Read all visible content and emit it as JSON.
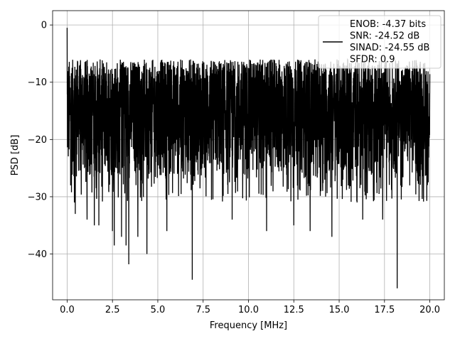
{
  "chart_data": {
    "type": "line",
    "title": "",
    "xlabel": "Frequency [MHz]",
    "ylabel": "PSD [dB]",
    "xlim": [
      -0.8,
      20.8
    ],
    "ylim": [
      -48,
      2.5
    ],
    "xticks": [
      0.0,
      2.5,
      5.0,
      7.5,
      10.0,
      12.5,
      15.0,
      17.5,
      20.0
    ],
    "xtick_labels": [
      "0.0",
      "2.5",
      "5.0",
      "7.5",
      "10.0",
      "12.5",
      "15.0",
      "17.5",
      "20.0"
    ],
    "yticks": [
      0,
      -10,
      -20,
      -30,
      -40
    ],
    "ytick_labels": [
      "0",
      "−10",
      "−20",
      "−30",
      "−40"
    ],
    "grid": true,
    "legend_position": "top-right",
    "series": [
      {
        "name": "ENOB: -4.37 bits\nSNR: -24.52 dB\nSINAD: -24.55 dB\nSFDR: 0.9",
        "color": "#000000",
        "x_range": [
          0,
          20
        ],
        "y_band": [
          -27,
          -6
        ],
        "notable_points": [
          {
            "x": 0.0,
            "y": -0.5
          },
          {
            "x": 0.05,
            "y": -17
          },
          {
            "x": 0.4,
            "y": -31
          },
          {
            "x": 0.45,
            "y": -33
          },
          {
            "x": 1.1,
            "y": -34
          },
          {
            "x": 1.5,
            "y": -35
          },
          {
            "x": 1.75,
            "y": -35
          },
          {
            "x": 2.5,
            "y": -36
          },
          {
            "x": 2.6,
            "y": -38.5
          },
          {
            "x": 3.0,
            "y": -37
          },
          {
            "x": 3.25,
            "y": -38.5
          },
          {
            "x": 3.4,
            "y": -41.8
          },
          {
            "x": 3.9,
            "y": -37
          },
          {
            "x": 4.4,
            "y": -40
          },
          {
            "x": 5.5,
            "y": -36
          },
          {
            "x": 6.9,
            "y": -44.5
          },
          {
            "x": 9.1,
            "y": -34
          },
          {
            "x": 11.0,
            "y": -36
          },
          {
            "x": 12.5,
            "y": -35
          },
          {
            "x": 13.4,
            "y": -36
          },
          {
            "x": 14.6,
            "y": -37
          },
          {
            "x": 16.3,
            "y": -34
          },
          {
            "x": 17.4,
            "y": -34
          },
          {
            "x": 18.2,
            "y": -46
          }
        ]
      }
    ]
  }
}
